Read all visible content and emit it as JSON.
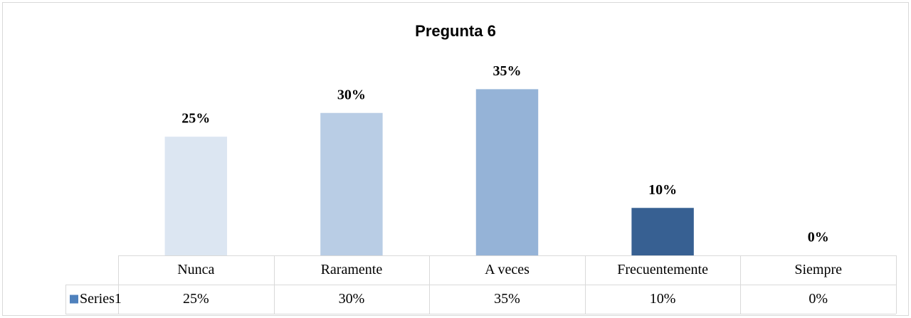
{
  "chart_data": {
    "type": "bar",
    "title": "Pregunta 6",
    "categories": [
      "Nunca",
      "Raramente",
      "A veces",
      "Frecuentemente",
      "Siempre"
    ],
    "series": [
      {
        "name": "Series1",
        "color": "#4f81bd",
        "point_colors": [
          "#dce6f2",
          "#b9cde5",
          "#95b3d7",
          "#376092",
          "#254061"
        ],
        "values": [
          25,
          30,
          35,
          10,
          0
        ],
        "value_labels": [
          "25%",
          "30%",
          "35%",
          "10%",
          "0%"
        ]
      }
    ],
    "ylim": [
      0,
      40
    ],
    "grid": false
  }
}
